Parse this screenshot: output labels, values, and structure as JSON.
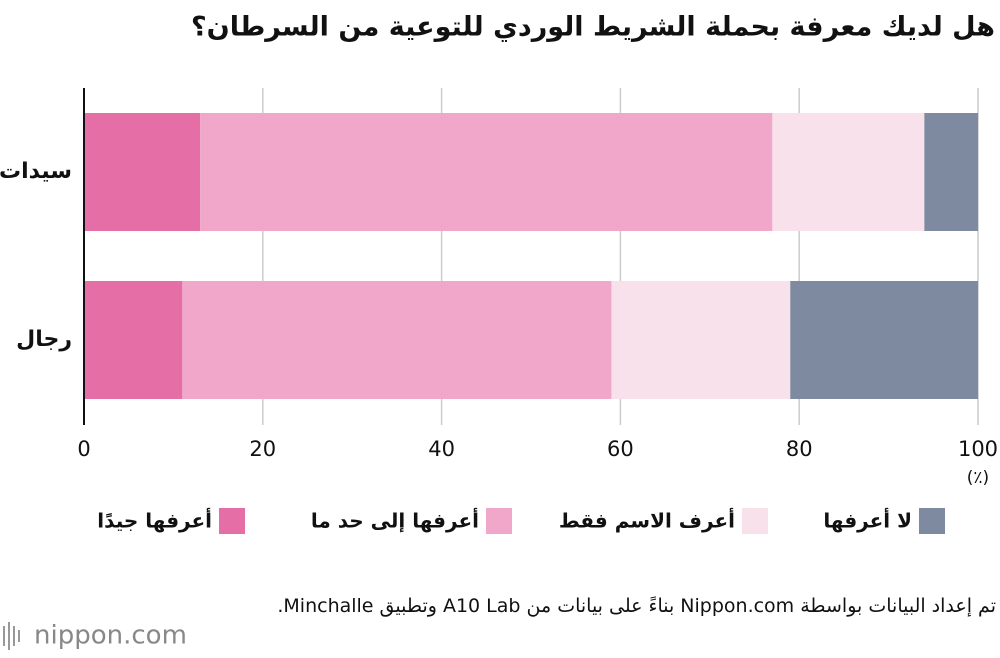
{
  "chart_data": {
    "type": "stacked-bar-horizontal",
    "title": "هل لديك معرفة بحملة الشريط الوردي للتوعية من السرطان؟",
    "categories": [
      "سيدات",
      "رجال"
    ],
    "series": [
      {
        "name": "أعرفها جيدًا",
        "color": "#e46ea5",
        "values": [
          13,
          11
        ]
      },
      {
        "name": "أعرفها إلى حد ما",
        "color": "#f0a7c9",
        "values": [
          64,
          48
        ]
      },
      {
        "name": "أعرف الاسم فقط",
        "color": "#f8e1ea",
        "values": [
          17,
          20
        ]
      },
      {
        "name": "لا أعرفها",
        "color": "#7d8a9f",
        "values": [
          6,
          21
        ]
      }
    ],
    "xlim": [
      0,
      100
    ],
    "xticks": [
      0,
      20,
      40,
      60,
      80,
      100
    ],
    "x_unit": "(٪)",
    "grid": true,
    "source": "تم إعداد البيانات بواسطة Nippon.com بناءً على بيانات من A10 Lab وتطبيق Minchalle.",
    "brand": "nippon.com"
  }
}
